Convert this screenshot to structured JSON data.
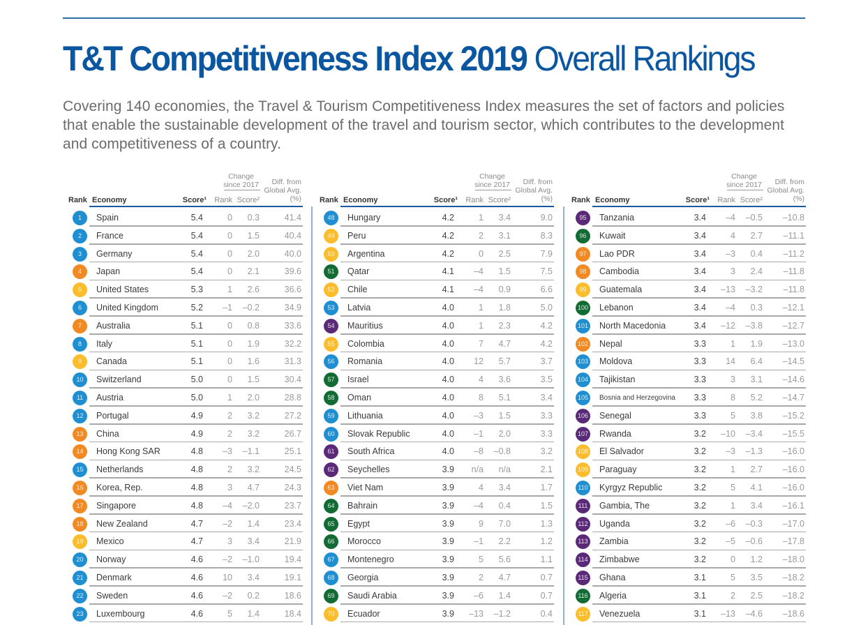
{
  "page": {
    "title_bold": "T&T Competitiveness Index 2019",
    "title_light": "Overall Rankings",
    "intro": "Covering 140 economies, the Travel & Tourism Competitiveness Index measures the set of factors and policies that enable the sustainable development of the travel and tourism sector, which contributes to the development and competitiveness of a country."
  },
  "headers": {
    "rank": "Rank",
    "economy": "Economy",
    "score": "Score¹",
    "change_group": "Change since 2017",
    "change_rank": "Rank",
    "change_score": "Score²",
    "diff": "Diff. from Global Avg. (%)"
  },
  "region_colors": {
    "blue": "#1f8fd1",
    "orange": "#f28a24",
    "yellow": "#fbbd2c",
    "green": "#136b34",
    "purple": "#5a2a78"
  },
  "columns": [
    {
      "rows": [
        {
          "rank": "1",
          "color": "blue",
          "economy": "Spain",
          "score": "5.4",
          "change_rank": "0",
          "change_score": "0.3",
          "diff": "41.4"
        },
        {
          "rank": "2",
          "color": "blue",
          "economy": "France",
          "score": "5.4",
          "change_rank": "0",
          "change_score": "1.5",
          "diff": "40.4"
        },
        {
          "rank": "3",
          "color": "blue",
          "economy": "Germany",
          "score": "5.4",
          "change_rank": "0",
          "change_score": "2.0",
          "diff": "40.0"
        },
        {
          "rank": "4",
          "color": "orange",
          "economy": "Japan",
          "score": "5.4",
          "change_rank": "0",
          "change_score": "2.1",
          "diff": "39.6"
        },
        {
          "rank": "5",
          "color": "yellow",
          "economy": "United States",
          "score": "5.3",
          "change_rank": "1",
          "change_score": "2.6",
          "diff": "36.6"
        },
        {
          "rank": "6",
          "color": "blue",
          "economy": "United Kingdom",
          "score": "5.2",
          "change_rank": "–1",
          "change_score": "–0.2",
          "diff": "34.9"
        },
        {
          "rank": "7",
          "color": "orange",
          "economy": "Australia",
          "score": "5.1",
          "change_rank": "0",
          "change_score": "0.8",
          "diff": "33.6"
        },
        {
          "rank": "8",
          "color": "blue",
          "economy": "Italy",
          "score": "5.1",
          "change_rank": "0",
          "change_score": "1.9",
          "diff": "32.2"
        },
        {
          "rank": "9",
          "color": "yellow",
          "economy": "Canada",
          "score": "5.1",
          "change_rank": "0",
          "change_score": "1.6",
          "diff": "31.3"
        },
        {
          "rank": "10",
          "color": "blue",
          "economy": "Switzerland",
          "score": "5.0",
          "change_rank": "0",
          "change_score": "1.5",
          "diff": "30.4"
        },
        {
          "rank": "11",
          "color": "blue",
          "economy": "Austria",
          "score": "5.0",
          "change_rank": "1",
          "change_score": "2.0",
          "diff": "28.8"
        },
        {
          "rank": "12",
          "color": "blue",
          "economy": "Portugal",
          "score": "4.9",
          "change_rank": "2",
          "change_score": "3.2",
          "diff": "27.2"
        },
        {
          "rank": "13",
          "color": "orange",
          "economy": "China",
          "score": "4.9",
          "change_rank": "2",
          "change_score": "3.2",
          "diff": "26.7"
        },
        {
          "rank": "14",
          "color": "orange",
          "economy": "Hong Kong SAR",
          "score": "4.8",
          "change_rank": "–3",
          "change_score": "–1.1",
          "diff": "25.1"
        },
        {
          "rank": "15",
          "color": "blue",
          "economy": "Netherlands",
          "score": "4.8",
          "change_rank": "2",
          "change_score": "3.2",
          "diff": "24.5"
        },
        {
          "rank": "16",
          "color": "orange",
          "economy": "Korea, Rep.",
          "score": "4.8",
          "change_rank": "3",
          "change_score": "4.7",
          "diff": "24.3"
        },
        {
          "rank": "17",
          "color": "orange",
          "economy": "Singapore",
          "score": "4.8",
          "change_rank": "–4",
          "change_score": "–2.0",
          "diff": "23.7"
        },
        {
          "rank": "18",
          "color": "orange",
          "economy": "New Zealand",
          "score": "4.7",
          "change_rank": "–2",
          "change_score": "1.4",
          "diff": "23.4"
        },
        {
          "rank": "19",
          "color": "yellow",
          "economy": "Mexico",
          "score": "4.7",
          "change_rank": "3",
          "change_score": "3.4",
          "diff": "21.9"
        },
        {
          "rank": "20",
          "color": "blue",
          "economy": "Norway",
          "score": "4.6",
          "change_rank": "–2",
          "change_score": "–1.0",
          "diff": "19.4"
        },
        {
          "rank": "21",
          "color": "blue",
          "economy": "Denmark",
          "score": "4.6",
          "change_rank": "10",
          "change_score": "3.4",
          "diff": "19.1"
        },
        {
          "rank": "22",
          "color": "blue",
          "economy": "Sweden",
          "score": "4.6",
          "change_rank": "–2",
          "change_score": "0.2",
          "diff": "18.6"
        },
        {
          "rank": "23",
          "color": "blue",
          "economy": "Luxembourg",
          "score": "4.6",
          "change_rank": "5",
          "change_score": "1.4",
          "diff": "18.4"
        }
      ]
    },
    {
      "rows": [
        {
          "rank": "48",
          "color": "blue",
          "economy": "Hungary",
          "score": "4.2",
          "change_rank": "1",
          "change_score": "3.4",
          "diff": "9.0"
        },
        {
          "rank": "49",
          "color": "yellow",
          "economy": "Peru",
          "score": "4.2",
          "change_rank": "2",
          "change_score": "3.1",
          "diff": "8.3"
        },
        {
          "rank": "50",
          "color": "yellow",
          "economy": "Argentina",
          "score": "4.2",
          "change_rank": "0",
          "change_score": "2.5",
          "diff": "7.9"
        },
        {
          "rank": "51",
          "color": "green",
          "economy": "Qatar",
          "score": "4.1",
          "change_rank": "–4",
          "change_score": "1.5",
          "diff": "7.5"
        },
        {
          "rank": "52",
          "color": "yellow",
          "economy": "Chile",
          "score": "4.1",
          "change_rank": "–4",
          "change_score": "0.9",
          "diff": "6.6"
        },
        {
          "rank": "53",
          "color": "blue",
          "economy": "Latvia",
          "score": "4.0",
          "change_rank": "1",
          "change_score": "1.8",
          "diff": "5.0"
        },
        {
          "rank": "54",
          "color": "purple",
          "economy": "Mauritius",
          "score": "4.0",
          "change_rank": "1",
          "change_score": "2.3",
          "diff": "4.2"
        },
        {
          "rank": "55",
          "color": "yellow",
          "economy": "Colombia",
          "score": "4.0",
          "change_rank": "7",
          "change_score": "4.7",
          "diff": "4.2"
        },
        {
          "rank": "56",
          "color": "blue",
          "economy": "Romania",
          "score": "4.0",
          "change_rank": "12",
          "change_score": "5.7",
          "diff": "3.7"
        },
        {
          "rank": "57",
          "color": "green",
          "economy": "Israel",
          "score": "4.0",
          "change_rank": "4",
          "change_score": "3.6",
          "diff": "3.5"
        },
        {
          "rank": "58",
          "color": "green",
          "economy": "Oman",
          "score": "4.0",
          "change_rank": "8",
          "change_score": "5.1",
          "diff": "3.4"
        },
        {
          "rank": "59",
          "color": "blue",
          "economy": "Lithuania",
          "score": "4.0",
          "change_rank": "–3",
          "change_score": "1.5",
          "diff": "3.3"
        },
        {
          "rank": "60",
          "color": "blue",
          "economy": "Slovak Republic",
          "score": "4.0",
          "change_rank": "–1",
          "change_score": "2.0",
          "diff": "3.3"
        },
        {
          "rank": "61",
          "color": "purple",
          "economy": "South Africa",
          "score": "4.0",
          "change_rank": "–8",
          "change_score": "–0.8",
          "diff": "3.2"
        },
        {
          "rank": "62",
          "color": "purple",
          "economy": "Seychelles",
          "score": "3.9",
          "change_rank": "n/a",
          "change_score": "n/a",
          "diff": "2.1"
        },
        {
          "rank": "63",
          "color": "orange",
          "economy": "Viet Nam",
          "score": "3.9",
          "change_rank": "4",
          "change_score": "3.4",
          "diff": "1.7"
        },
        {
          "rank": "64",
          "color": "green",
          "economy": "Bahrain",
          "score": "3.9",
          "change_rank": "–4",
          "change_score": "0.4",
          "diff": "1.5"
        },
        {
          "rank": "65",
          "color": "green",
          "economy": "Egypt",
          "score": "3.9",
          "change_rank": "9",
          "change_score": "7.0",
          "diff": "1.3"
        },
        {
          "rank": "66",
          "color": "green",
          "economy": "Morocco",
          "score": "3.9",
          "change_rank": "–1",
          "change_score": "2.2",
          "diff": "1.2"
        },
        {
          "rank": "67",
          "color": "blue",
          "economy": "Montenegro",
          "score": "3.9",
          "change_rank": "5",
          "change_score": "5.6",
          "diff": "1.1"
        },
        {
          "rank": "68",
          "color": "blue",
          "economy": "Georgia",
          "score": "3.9",
          "change_rank": "2",
          "change_score": "4.7",
          "diff": "0.7"
        },
        {
          "rank": "69",
          "color": "green",
          "economy": "Saudi Arabia",
          "score": "3.9",
          "change_rank": "–6",
          "change_score": "1.4",
          "diff": "0.7"
        },
        {
          "rank": "70",
          "color": "yellow",
          "economy": "Ecuador",
          "score": "3.9",
          "change_rank": "–13",
          "change_score": "–1.2",
          "diff": "0.4"
        }
      ]
    },
    {
      "rows": [
        {
          "rank": "95",
          "color": "purple",
          "economy": "Tanzania",
          "score": "3.4",
          "change_rank": "–4",
          "change_score": "–0.5",
          "diff": "–10.8"
        },
        {
          "rank": "96",
          "color": "green",
          "economy": "Kuwait",
          "score": "3.4",
          "change_rank": "4",
          "change_score": "2.7",
          "diff": "–11.1"
        },
        {
          "rank": "97",
          "color": "orange",
          "economy": "Lao PDR",
          "score": "3.4",
          "change_rank": "–3",
          "change_score": "0.4",
          "diff": "–11.2"
        },
        {
          "rank": "98",
          "color": "orange",
          "economy": "Cambodia",
          "score": "3.4",
          "change_rank": "3",
          "change_score": "2.4",
          "diff": "–11.8"
        },
        {
          "rank": "99",
          "color": "yellow",
          "economy": "Guatemala",
          "score": "3.4",
          "change_rank": "–13",
          "change_score": "–3.2",
          "diff": "–11.8"
        },
        {
          "rank": "100",
          "color": "green",
          "economy": "Lebanon",
          "score": "3.4",
          "change_rank": "–4",
          "change_score": "0.3",
          "diff": "–12.1"
        },
        {
          "rank": "101",
          "color": "blue",
          "economy": "North Macedonia",
          "score": "3.4",
          "change_rank": "–12",
          "change_score": "–3.8",
          "diff": "–12.7"
        },
        {
          "rank": "102",
          "color": "orange",
          "economy": "Nepal",
          "score": "3.3",
          "change_rank": "1",
          "change_score": "1.9",
          "diff": "–13.0"
        },
        {
          "rank": "103",
          "color": "blue",
          "economy": "Moldova",
          "score": "3.3",
          "change_rank": "14",
          "change_score": "6.4",
          "diff": "–14.5"
        },
        {
          "rank": "104",
          "color": "blue",
          "economy": "Tajikistan",
          "score": "3.3",
          "change_rank": "3",
          "change_score": "3.1",
          "diff": "–14.6"
        },
        {
          "rank": "105",
          "color": "blue",
          "economy": "Bosnia and Herzegovina",
          "score": "3.3",
          "change_rank": "8",
          "change_score": "5.2",
          "diff": "–14.7",
          "small": true
        },
        {
          "rank": "106",
          "color": "purple",
          "economy": "Senegal",
          "score": "3.3",
          "change_rank": "5",
          "change_score": "3.8",
          "diff": "–15.2"
        },
        {
          "rank": "107",
          "color": "purple",
          "economy": "Rwanda",
          "score": "3.2",
          "change_rank": "–10",
          "change_score": "–3.4",
          "diff": "–15.5"
        },
        {
          "rank": "108",
          "color": "yellow",
          "economy": "El Salvador",
          "score": "3.2",
          "change_rank": "–3",
          "change_score": "–1.3",
          "diff": "–16.0"
        },
        {
          "rank": "109",
          "color": "yellow",
          "economy": "Paraguay",
          "score": "3.2",
          "change_rank": "1",
          "change_score": "2.7",
          "diff": "–16.0"
        },
        {
          "rank": "110",
          "color": "blue",
          "economy": "Kyrgyz Republic",
          "score": "3.2",
          "change_rank": "5",
          "change_score": "4.1",
          "diff": "–16.0"
        },
        {
          "rank": "111",
          "color": "purple",
          "economy": "Gambia, The",
          "score": "3.2",
          "change_rank": "1",
          "change_score": "3.4",
          "diff": "–16.1"
        },
        {
          "rank": "112",
          "color": "purple",
          "economy": "Uganda",
          "score": "3.2",
          "change_rank": "–6",
          "change_score": "–0.3",
          "diff": "–17.0"
        },
        {
          "rank": "113",
          "color": "purple",
          "economy": "Zambia",
          "score": "3.2",
          "change_rank": "–5",
          "change_score": "–0.6",
          "diff": "–17.8"
        },
        {
          "rank": "114",
          "color": "purple",
          "economy": "Zimbabwe",
          "score": "3.2",
          "change_rank": "0",
          "change_score": "1.2",
          "diff": "–18.0"
        },
        {
          "rank": "115",
          "color": "purple",
          "economy": "Ghana",
          "score": "3.1",
          "change_rank": "5",
          "change_score": "3.5",
          "diff": "–18.2"
        },
        {
          "rank": "116",
          "color": "green",
          "economy": "Algeria",
          "score": "3.1",
          "change_rank": "2",
          "change_score": "2.5",
          "diff": "–18.2"
        },
        {
          "rank": "117",
          "color": "yellow",
          "economy": "Venezuela",
          "score": "3.1",
          "change_rank": "–13",
          "change_score": "–4.6",
          "diff": "–18.6"
        }
      ]
    }
  ]
}
